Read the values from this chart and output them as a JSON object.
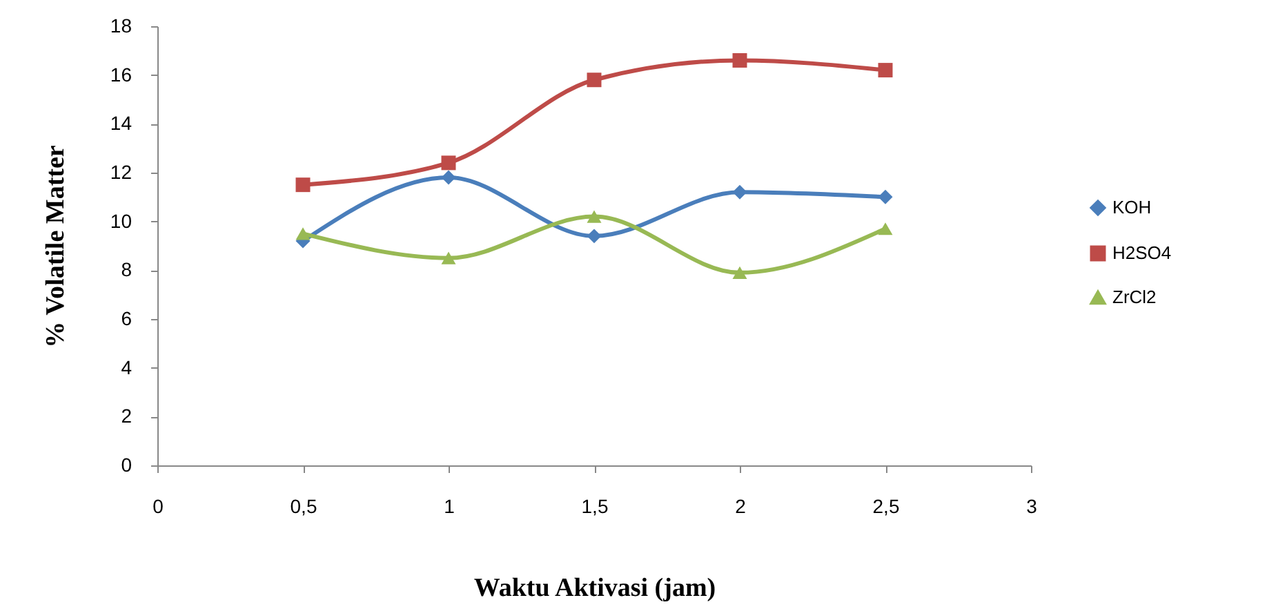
{
  "chart_data": {
    "type": "line",
    "xlabel": "Waktu Aktivasi (jam)",
    "ylabel": "% Volatile Matter",
    "x": [
      0.5,
      1,
      1.5,
      2,
      2.5
    ],
    "series": [
      {
        "name": "KOH",
        "color": "#4a7ebb",
        "marker": "diamond",
        "values": [
          9.2,
          11.8,
          9.4,
          11.2,
          11.0
        ]
      },
      {
        "name": "H2SO4",
        "color": "#be4b48",
        "marker": "square",
        "values": [
          11.5,
          12.4,
          15.8,
          16.6,
          16.2
        ]
      },
      {
        "name": "ZrCl2",
        "color": "#98b954",
        "marker": "triangle",
        "values": [
          9.5,
          8.5,
          10.2,
          7.9,
          9.7
        ]
      }
    ],
    "xlim": [
      0,
      3
    ],
    "xticks": [
      {
        "value": 0,
        "label": "0"
      },
      {
        "value": 0.5,
        "label": "0,5"
      },
      {
        "value": 1,
        "label": "1"
      },
      {
        "value": 1.5,
        "label": "1,5"
      },
      {
        "value": 2,
        "label": "2"
      },
      {
        "value": 2.5,
        "label": "2,5"
      },
      {
        "value": 3,
        "label": "3"
      }
    ],
    "ylim": [
      0,
      18
    ],
    "yticks": [
      0,
      2,
      4,
      6,
      8,
      10,
      12,
      14,
      16,
      18
    ],
    "grid": false,
    "legend": "right",
    "line_style": "solid"
  }
}
